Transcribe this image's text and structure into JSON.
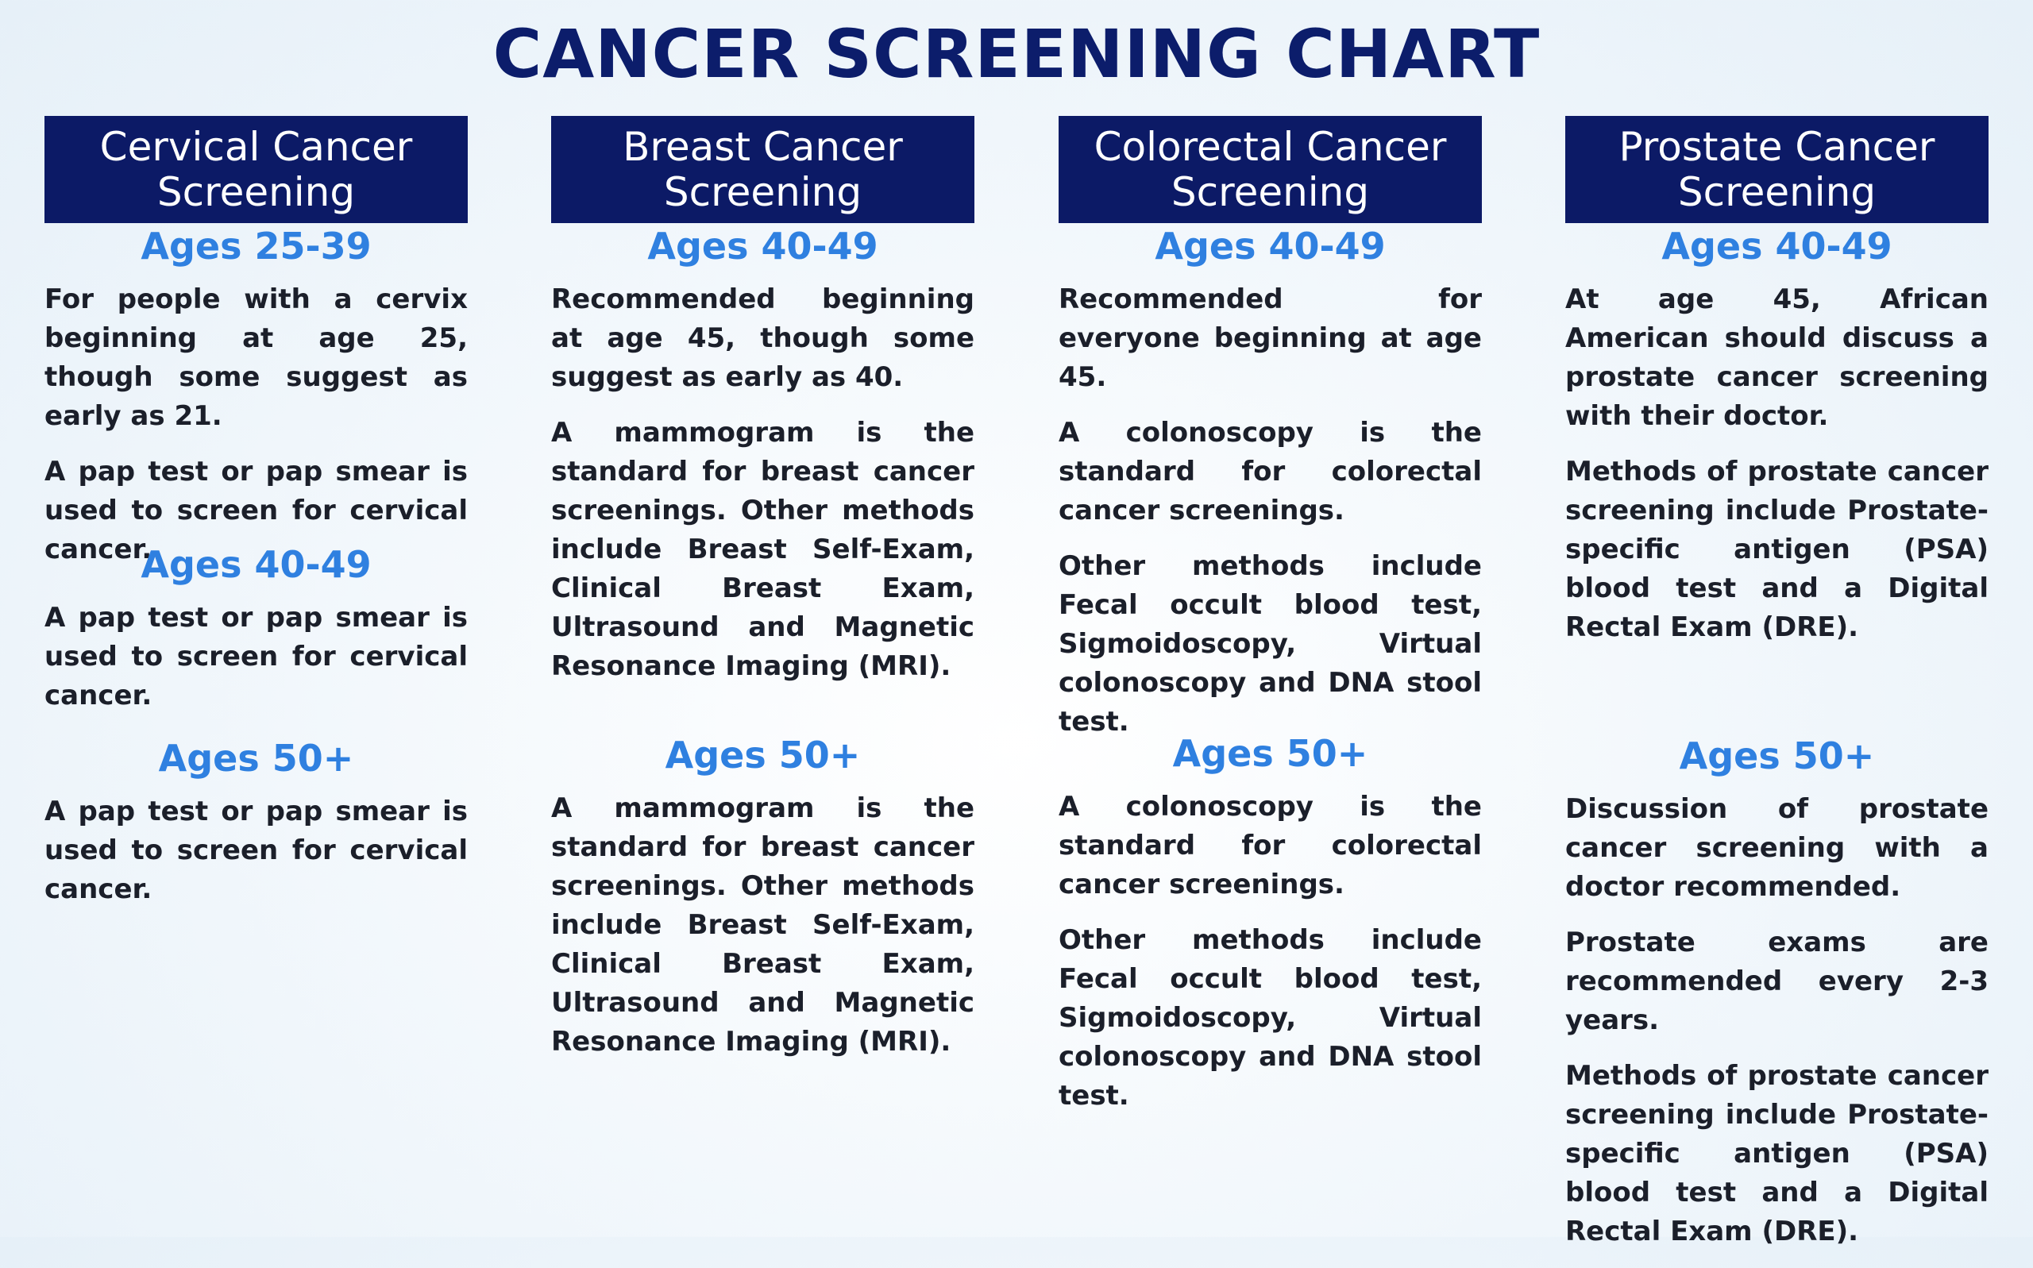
{
  "title": "CANCER SCREENING CHART",
  "columns": [
    {
      "header": "Cervical Cancer Screening",
      "sections": [
        {
          "age": "Ages 25-39",
          "paragraphs": [
            "For people with a cervix beginning at age 25, though some suggest as early as 21.",
            "A pap test or pap smear is used to screen for cervical cancer."
          ]
        },
        {
          "age": "Ages 40-49",
          "paragraphs": [
            "A pap test or pap smear is used to screen for cervical cancer."
          ]
        },
        {
          "age": "Ages 50+",
          "paragraphs": [
            "A pap test or pap smear is used to screen for cervical cancer."
          ]
        }
      ]
    },
    {
      "header": "Breast Cancer Screening",
      "sections": [
        {
          "age": "Ages 40-49",
          "paragraphs": [
            "Recommended beginning at age 45, though some suggest as early as 40.",
            "A mammogram is the standard for breast cancer screenings. Other methods include Breast Self-Exam, Clinical Breast Exam, Ultrasound and Magnetic Resonance Imaging (MRI)."
          ]
        },
        {
          "age": "Ages 50+",
          "paragraphs": [
            "A mammogram is the standard for breast cancer screenings. Other methods include Breast Self-Exam, Clinical Breast Exam, Ultrasound and Magnetic Resonance Imaging (MRI)."
          ]
        }
      ]
    },
    {
      "header": "Colorectal Cancer Screening",
      "sections": [
        {
          "age": "Ages 40-49",
          "paragraphs": [
            "Recommended for everyone beginning at age 45.",
            "A colonoscopy is the standard for colorectal cancer screenings.",
            "Other methods include Fecal occult blood test, Sigmoidoscopy, Virtual colonoscopy and DNA stool test."
          ]
        },
        {
          "age": "Ages 50+",
          "paragraphs": [
            "A colonoscopy is the standard for colorectal cancer screenings.",
            "Other methods include Fecal occult blood test, Sigmoidoscopy, Virtual colonoscopy and DNA stool test."
          ]
        }
      ]
    },
    {
      "header": "Prostate Cancer Screening",
      "sections": [
        {
          "age": "Ages 40-49",
          "paragraphs": [
            "At age 45, African American should discuss a prostate cancer screening with their doctor.",
            "Methods of prostate cancer screening include Prostate-specific antigen (PSA) blood test and a Digital Rectal Exam (DRE)."
          ]
        },
        {
          "age": "Ages 50+",
          "paragraphs": [
            "Discussion of prostate cancer screening with a doctor recommended.",
            "Prostate exams are recommended every 2-3 years.",
            "Methods of prostate cancer screening include Prostate-specific antigen (PSA) blood test and a Digital Rectal Exam (DRE)."
          ]
        }
      ]
    }
  ]
}
